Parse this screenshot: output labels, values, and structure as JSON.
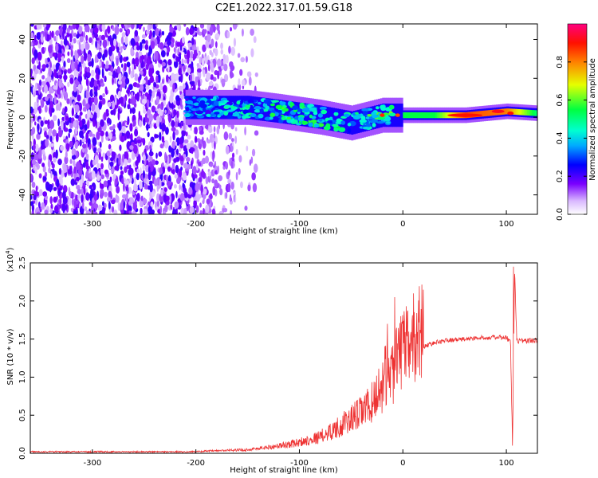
{
  "figure_title": "C2E1.2022.317.01.59.G18",
  "chart_data": [
    {
      "type": "heatmap",
      "title": "C2E1.2022.317.01.59.G18",
      "xlabel": "Height of straight line (km)",
      "ylabel": "Frequency (Hz)",
      "xlim": [
        -360,
        130
      ],
      "ylim": [
        -50,
        48
      ],
      "xticks": [
        -300,
        -200,
        -100,
        0,
        100
      ],
      "yticks": [
        -40,
        -20,
        0,
        20,
        40
      ],
      "colorbar": {
        "label": "Normalized spectral amplitude",
        "range": [
          0.0,
          1.0
        ],
        "ticks": [
          0.0,
          0.2,
          0.4,
          0.6,
          0.8
        ],
        "colormap": [
          "#ffffff",
          "#7a00ff",
          "#0000ff",
          "#00e0ff",
          "#00ff40",
          "#ffff00",
          "#ff8000",
          "#ff0000",
          "#ff0080"
        ]
      },
      "features": {
        "noise_region_x": [
          -360,
          -140
        ],
        "signal_band": [
          {
            "x": -210,
            "y": 5,
            "amplitude": 0.3
          },
          {
            "x": -150,
            "y": 5,
            "amplitude": 0.4
          },
          {
            "x": -120,
            "y": 3,
            "amplitude": 0.45
          },
          {
            "x": -80,
            "y": 0,
            "amplitude": 0.45
          },
          {
            "x": -50,
            "y": -3,
            "amplitude": 0.4
          },
          {
            "x": -20,
            "y": 1,
            "amplitude": 0.5
          },
          {
            "x": 0,
            "y": 1,
            "amplitude": 0.55
          },
          {
            "x": 30,
            "y": 1,
            "amplitude": 0.55
          },
          {
            "x": 60,
            "y": 1,
            "amplitude": 0.85
          },
          {
            "x": 100,
            "y": 3,
            "amplitude": 0.8
          },
          {
            "x": 130,
            "y": 2,
            "amplitude": 0.5
          }
        ]
      }
    },
    {
      "type": "line",
      "xlabel": "Height of straight line (km)",
      "ylabel": "SNR (10 * v/v)",
      "y_multiplier": "(x10^4)",
      "xlim": [
        -360,
        130
      ],
      "ylim": [
        0,
        2.5
      ],
      "xticks": [
        -300,
        -200,
        -100,
        0,
        100
      ],
      "yticks": [
        0.0,
        0.5,
        1.0,
        1.5,
        2.0,
        2.5
      ],
      "color": "#ee3333",
      "series": [
        {
          "x": [
            -360,
            -300,
            -250,
            -210,
            -200,
            -150,
            -120,
            -100,
            -80,
            -60,
            -40,
            -30,
            -20,
            -15,
            -10,
            -5,
            0,
            10,
            20,
            30,
            40,
            60,
            80,
            100,
            104,
            106,
            108,
            110,
            120,
            130
          ],
          "values": [
            0.02,
            0.02,
            0.02,
            0.02,
            0.02,
            0.04,
            0.08,
            0.12,
            0.18,
            0.3,
            0.45,
            0.55,
            0.75,
            0.9,
            0.9,
            1.0,
            1.1,
            1.25,
            1.4,
            1.45,
            1.48,
            1.5,
            1.52,
            1.52,
            1.45,
            0.1,
            2.45,
            1.48,
            1.48,
            1.48
          ]
        }
      ],
      "spikes": [
        {
          "x": -8,
          "y": 2.05
        },
        {
          "x": -15,
          "y": 1.7
        },
        {
          "x": -2,
          "y": 1.8
        },
        {
          "x": 106,
          "y": 0.1
        },
        {
          "x": 107,
          "y": 2.45
        }
      ]
    }
  ]
}
